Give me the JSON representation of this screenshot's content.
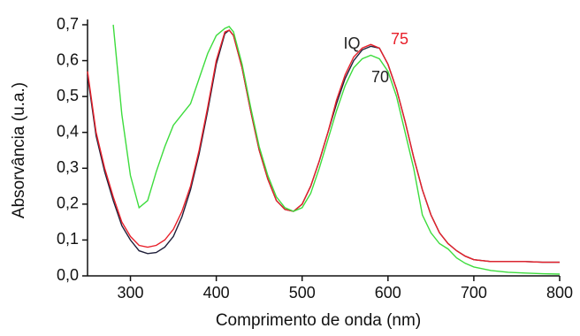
{
  "chart_data": {
    "type": "line",
    "xlabel": "Comprimento de onda (nm)",
    "ylabel": "Absorvância (u.a.)",
    "x": [
      250,
      260,
      270,
      280,
      290,
      300,
      310,
      320,
      330,
      340,
      350,
      360,
      370,
      380,
      390,
      400,
      410,
      415,
      420,
      430,
      440,
      450,
      460,
      470,
      480,
      490,
      500,
      510,
      520,
      530,
      540,
      550,
      560,
      570,
      580,
      590,
      600,
      610,
      620,
      630,
      640,
      650,
      660,
      670,
      680,
      690,
      700,
      720,
      740,
      760,
      780,
      800
    ],
    "series": [
      {
        "name": "IQ",
        "color": "#1f1f3a",
        "label_color": "#222222",
        "values": [
          0.56,
          0.39,
          0.29,
          0.21,
          0.14,
          0.1,
          0.07,
          0.062,
          0.065,
          0.08,
          0.11,
          0.165,
          0.24,
          0.34,
          0.46,
          0.59,
          0.675,
          0.685,
          0.67,
          0.58,
          0.46,
          0.35,
          0.27,
          0.21,
          0.185,
          0.18,
          0.2,
          0.25,
          0.32,
          0.4,
          0.48,
          0.55,
          0.6,
          0.63,
          0.64,
          0.635,
          0.59,
          0.52,
          0.43,
          0.33,
          0.24,
          0.17,
          0.12,
          0.09,
          0.07,
          0.055,
          0.045,
          0.04,
          0.04,
          0.04,
          0.038,
          0.038
        ]
      },
      {
        "name": "75",
        "color": "#e8202a",
        "label_color": "#e8202a",
        "values": [
          0.57,
          0.4,
          0.3,
          0.22,
          0.15,
          0.11,
          0.085,
          0.08,
          0.085,
          0.1,
          0.13,
          0.18,
          0.25,
          0.35,
          0.47,
          0.6,
          0.68,
          0.685,
          0.67,
          0.58,
          0.46,
          0.35,
          0.27,
          0.21,
          0.185,
          0.18,
          0.2,
          0.25,
          0.32,
          0.4,
          0.49,
          0.56,
          0.61,
          0.635,
          0.645,
          0.635,
          0.59,
          0.52,
          0.43,
          0.33,
          0.24,
          0.17,
          0.12,
          0.09,
          0.07,
          0.055,
          0.045,
          0.04,
          0.04,
          0.04,
          0.038,
          0.038
        ]
      },
      {
        "name": "70",
        "color": "#3ddc3d",
        "label_color": "#222222",
        "values": [
          null,
          null,
          null,
          0.7,
          0.45,
          0.28,
          0.19,
          0.21,
          0.29,
          0.36,
          0.42,
          0.45,
          0.48,
          0.55,
          0.62,
          0.67,
          0.69,
          0.695,
          0.68,
          0.59,
          0.47,
          0.36,
          0.28,
          0.22,
          0.19,
          0.18,
          0.19,
          0.23,
          0.3,
          0.38,
          0.46,
          0.53,
          0.58,
          0.605,
          0.615,
          0.605,
          0.57,
          0.5,
          0.4,
          0.3,
          0.17,
          0.12,
          0.09,
          0.075,
          0.05,
          0.035,
          0.025,
          0.015,
          0.01,
          0.008,
          0.006,
          0.005
        ]
      }
    ],
    "xlim": [
      250,
      800
    ],
    "xticks": [
      300,
      400,
      500,
      600,
      700,
      800
    ],
    "ylim": [
      0,
      0.7
    ],
    "yticks": [
      {
        "value": 0,
        "label": "0,0"
      },
      {
        "value": 0.1,
        "label": "0,1"
      },
      {
        "value": 0.2,
        "label": "0,2"
      },
      {
        "value": 0.3,
        "label": "0,3"
      },
      {
        "value": 0.4,
        "label": "0,4"
      },
      {
        "value": 0.5,
        "label": "0,5"
      },
      {
        "value": 0.6,
        "label": "0,6"
      },
      {
        "value": 0.7,
        "label": "0,7"
      }
    ],
    "grid": false
  }
}
